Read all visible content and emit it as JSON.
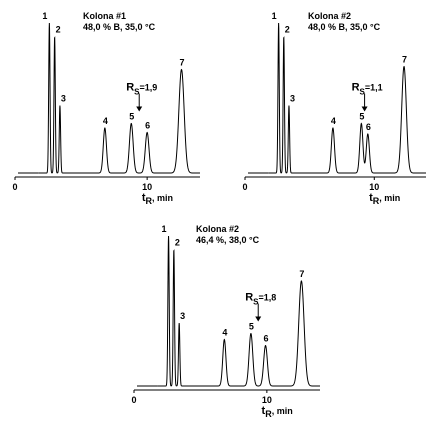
{
  "chart_data": [
    {
      "type": "line",
      "title": "Kolona #1",
      "subtitle": "48,0 % B, 35,0 °C",
      "xlabel_main": "t",
      "xlabel_sub": "R",
      "xlabel_unit": ", min",
      "xlim": [
        0,
        14
      ],
      "xticks": [
        {
          "value": 0,
          "label": "0"
        },
        {
          "value": 10,
          "label": "10"
        }
      ],
      "peaks": [
        {
          "label": "1",
          "t": 2.6,
          "h": 1.0,
          "w": 0.05
        },
        {
          "label": "2",
          "t": 3.0,
          "h": 0.91,
          "w": 0.05
        },
        {
          "label": "3",
          "t": 3.4,
          "h": 0.45,
          "w": 0.05
        },
        {
          "label": "4",
          "t": 6.8,
          "h": 0.3,
          "w": 0.12
        },
        {
          "label": "5",
          "t": 8.8,
          "h": 0.33,
          "w": 0.14
        },
        {
          "label": "6",
          "t": 10.0,
          "h": 0.27,
          "w": 0.14
        },
        {
          "label": "7",
          "t": 12.6,
          "h": 0.69,
          "w": 0.2
        }
      ],
      "annotation": {
        "text_main": "R",
        "text_sub": "S",
        "text_value": "=1,9",
        "between": [
          "5",
          "6"
        ]
      }
    },
    {
      "type": "line",
      "title": "Kolona #2",
      "subtitle": "48,0 % B, 35,0 °C",
      "xlabel_main": "t",
      "xlabel_sub": "R",
      "xlabel_unit": ", min",
      "xlim": [
        0,
        14
      ],
      "xticks": [
        {
          "value": 0,
          "label": "0"
        },
        {
          "value": 10,
          "label": "10"
        }
      ],
      "peaks": [
        {
          "label": "1",
          "t": 2.6,
          "h": 1.0,
          "w": 0.05
        },
        {
          "label": "2",
          "t": 3.0,
          "h": 0.91,
          "w": 0.05
        },
        {
          "label": "3",
          "t": 3.4,
          "h": 0.45,
          "w": 0.05
        },
        {
          "label": "4",
          "t": 6.8,
          "h": 0.3,
          "w": 0.12
        },
        {
          "label": "5",
          "t": 9.0,
          "h": 0.33,
          "w": 0.12
        },
        {
          "label": "6",
          "t": 9.5,
          "h": 0.26,
          "w": 0.12
        },
        {
          "label": "7",
          "t": 12.3,
          "h": 0.71,
          "w": 0.18
        }
      ],
      "annotation": {
        "text_main": "R",
        "text_sub": "S",
        "text_value": "=1,1",
        "between": [
          "5",
          "6"
        ]
      }
    },
    {
      "type": "line",
      "title": "Kolona #2",
      "subtitle": "46,4 %, 38,0 °C",
      "xlabel_main": "t",
      "xlabel_sub": "R",
      "xlabel_unit": ", min",
      "xlim": [
        0,
        14
      ],
      "xticks": [
        {
          "value": 0,
          "label": "0"
        },
        {
          "value": 10,
          "label": "10"
        }
      ],
      "peaks": [
        {
          "label": "1",
          "t": 2.6,
          "h": 1.0,
          "w": 0.05
        },
        {
          "label": "2",
          "t": 3.0,
          "h": 0.91,
          "w": 0.05
        },
        {
          "label": "3",
          "t": 3.4,
          "h": 0.42,
          "w": 0.05
        },
        {
          "label": "4",
          "t": 6.8,
          "h": 0.31,
          "w": 0.12
        },
        {
          "label": "5",
          "t": 8.8,
          "h": 0.35,
          "w": 0.14
        },
        {
          "label": "6",
          "t": 9.9,
          "h": 0.27,
          "w": 0.14
        },
        {
          "label": "7",
          "t": 12.6,
          "h": 0.7,
          "w": 0.2
        }
      ],
      "annotation": {
        "text_main": "R",
        "text_sub": "S",
        "text_value": "=1,8",
        "between": [
          "5",
          "6"
        ]
      }
    }
  ]
}
